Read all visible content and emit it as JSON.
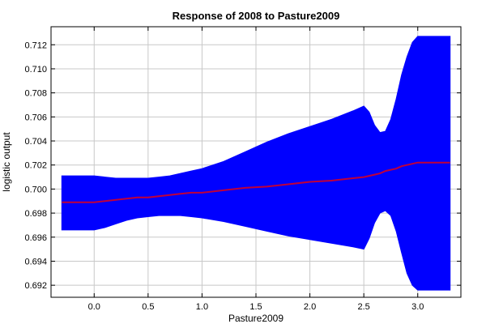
{
  "chart_data": {
    "type": "area",
    "title": "Response of 2008 to Pasture2009",
    "xlabel": "Pasture2009",
    "ylabel": "logistic output",
    "xlim": [
      -0.4,
      3.4
    ],
    "ylim": [
      0.691,
      0.7135
    ],
    "xticks": [
      0.0,
      0.5,
      1.0,
      1.5,
      2.0,
      2.5,
      3.0
    ],
    "xtick_labels": [
      "0.0",
      "0.5",
      "1.0",
      "1.5",
      "2.0",
      "2.5",
      "3.0"
    ],
    "yticks": [
      0.692,
      0.694,
      0.696,
      0.698,
      0.7,
      0.702,
      0.704,
      0.706,
      0.708,
      0.71,
      0.712
    ],
    "ytick_labels": [
      "0.692",
      "0.694",
      "0.696",
      "0.698",
      "0.700",
      "0.702",
      "0.704",
      "0.706",
      "0.708",
      "0.710",
      "0.712"
    ],
    "grid": true,
    "band_color": "#0000ff",
    "line_color": "#c0003a",
    "x": [
      -0.3,
      0.0,
      0.1,
      0.2,
      0.3,
      0.4,
      0.5,
      0.6,
      0.7,
      0.8,
      0.9,
      1.0,
      1.2,
      1.4,
      1.6,
      1.8,
      2.0,
      2.2,
      2.4,
      2.5,
      2.55,
      2.6,
      2.65,
      2.7,
      2.75,
      2.8,
      2.85,
      2.9,
      2.95,
      3.0,
      3.1,
      3.2,
      3.3
    ],
    "series": [
      {
        "values": [
          0.6989,
          0.6989,
          0.699,
          0.6991,
          0.6992,
          0.6993,
          0.6993,
          0.6994,
          0.6995,
          0.6996,
          0.6997,
          0.6997,
          0.6999,
          0.7001,
          0.7002,
          0.7004,
          0.7006,
          0.7007,
          0.7009,
          0.701,
          0.7011,
          0.7012,
          0.7013,
          0.7015,
          0.7016,
          0.7017,
          0.7019,
          0.702,
          0.7021,
          0.7022,
          0.7022,
          0.7022,
          0.7022
        ]
      }
    ],
    "band_upper": [
      0.7011,
      0.7011,
      0.701,
      0.7009,
      0.7009,
      0.7009,
      0.7009,
      0.701,
      0.7011,
      0.7013,
      0.7015,
      0.7017,
      0.7023,
      0.7031,
      0.7039,
      0.7046,
      0.7052,
      0.7058,
      0.7065,
      0.7069,
      0.7064,
      0.7053,
      0.7047,
      0.7048,
      0.7058,
      0.7075,
      0.7095,
      0.711,
      0.7122,
      0.7127,
      0.7127,
      0.7127,
      0.7127
    ],
    "band_lower": [
      0.6966,
      0.6966,
      0.6968,
      0.6971,
      0.6974,
      0.6976,
      0.6977,
      0.6978,
      0.6978,
      0.6978,
      0.6977,
      0.6976,
      0.6973,
      0.6969,
      0.6965,
      0.6961,
      0.6958,
      0.6955,
      0.6952,
      0.695,
      0.6959,
      0.6972,
      0.698,
      0.6982,
      0.6978,
      0.6965,
      0.6947,
      0.693,
      0.692,
      0.6916,
      0.6916,
      0.6916,
      0.6916
    ]
  }
}
